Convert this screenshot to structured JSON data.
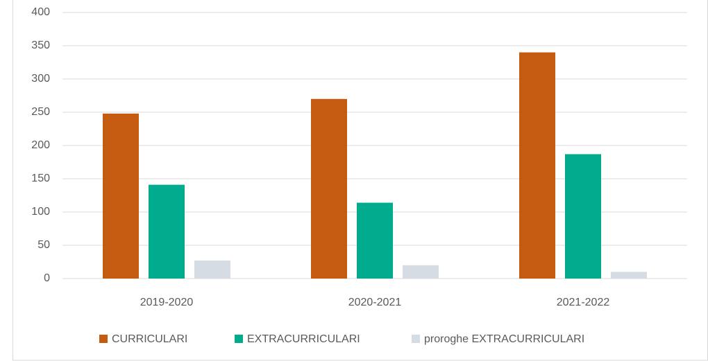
{
  "chart_data": {
    "type": "bar",
    "categories": [
      "2019-2020",
      "2020-2021",
      "2021-2022"
    ],
    "series": [
      {
        "name": "CURRICULARI",
        "color": "#c55a11",
        "values": [
          248,
          270,
          340
        ]
      },
      {
        "name": "EXTRACURRICULARI",
        "color": "#00ab8e",
        "values": [
          141,
          114,
          187
        ]
      },
      {
        "name": "proroghe EXTRACURRICULARI",
        "color": "#d6dce4",
        "values": [
          27,
          20,
          10
        ]
      }
    ],
    "ylim": [
      0,
      400
    ],
    "yticks": [
      0,
      50,
      100,
      150,
      200,
      250,
      300,
      350,
      400
    ],
    "grid": true,
    "legend": "bottom"
  }
}
